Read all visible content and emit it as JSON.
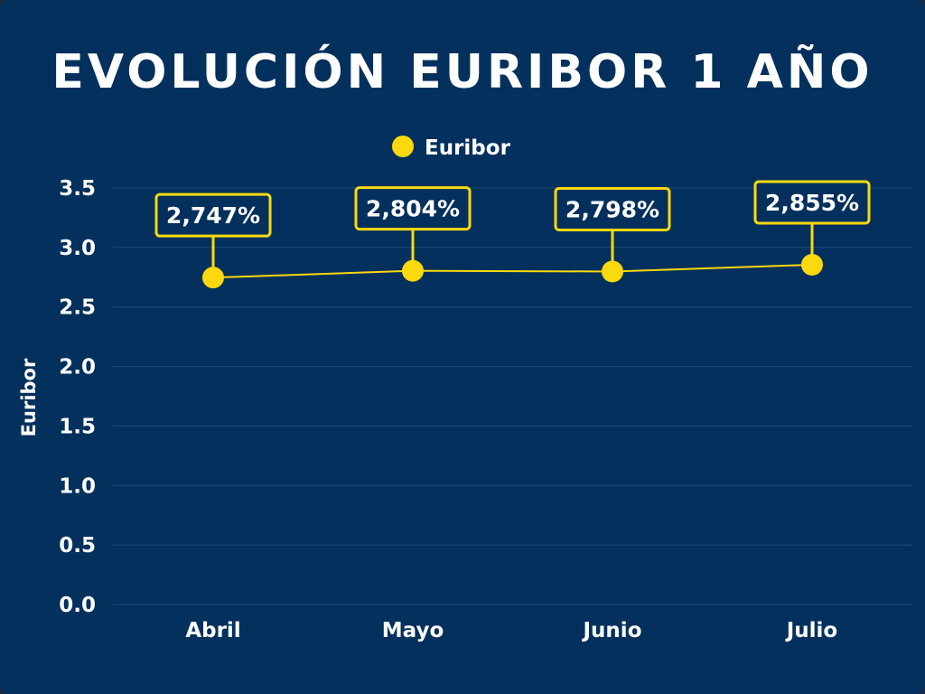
{
  "title": "EVOLUCIÓN EURIBOR 1 AÑO",
  "colors": {
    "background": "#03305c",
    "accent": "#fcd90e",
    "grid": "#1e4d78",
    "text": "#ffffff"
  },
  "chart_data": {
    "type": "line",
    "title": "EVOLUCIÓN EURIBOR 1 AÑO",
    "xlabel": "",
    "ylabel": "Euribor",
    "categories": [
      "Abril",
      "Mayo",
      "Junio",
      "Julio"
    ],
    "series": [
      {
        "name": "Euribor",
        "values": [
          2.747,
          2.804,
          2.798,
          2.855
        ],
        "data_labels": [
          "2,747%",
          "2,804%",
          "2,798%",
          "2,855%"
        ]
      }
    ],
    "ylim": [
      0,
      3.5
    ],
    "yticks": [
      "0.0",
      "0.5",
      "1.0",
      "1.5",
      "2.0",
      "2.5",
      "3.0",
      "3.5"
    ],
    "grid": true,
    "legend_position": "top-center"
  }
}
